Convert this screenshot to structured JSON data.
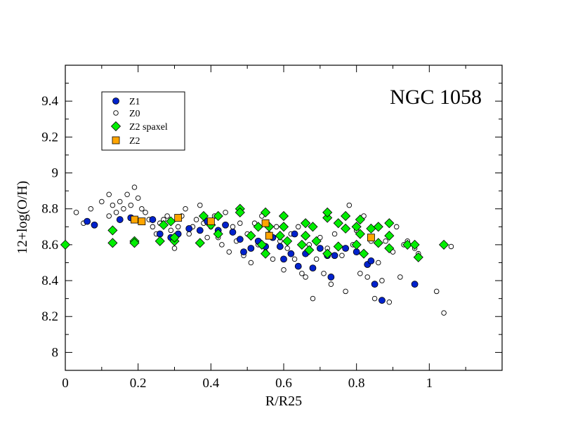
{
  "chart_data": {
    "type": "scatter",
    "title": "NGC 1058",
    "xlabel": "R/R25",
    "ylabel": "12+log(O/H)",
    "xlim": [
      0,
      1.2
    ],
    "ylim": [
      7.9,
      9.6
    ],
    "xticks": [
      0,
      0.2,
      0.4,
      0.6,
      0.8,
      1
    ],
    "xtick_labels": [
      "0",
      "0.2",
      "0.4",
      "0.6",
      "0.8",
      "1"
    ],
    "yticks": [
      8,
      8.2,
      8.4,
      8.6,
      8.8,
      9,
      9.2,
      9.4
    ],
    "ytick_labels": [
      "8",
      "8.2",
      "8.4",
      "8.6",
      "8.8",
      "9",
      "9.2",
      "9.4"
    ],
    "legend_position": "top-left",
    "colors": {
      "z1": "#0022cc",
      "z0": "#ffffff",
      "z2_spaxel": "#00ee00",
      "z2": "#ffa500"
    },
    "series": [
      {
        "name": "Z1",
        "marker": "filled-circle",
        "points": [
          [
            0.06,
            8.73
          ],
          [
            0.08,
            8.71
          ],
          [
            0.15,
            8.74
          ],
          [
            0.18,
            8.75
          ],
          [
            0.24,
            8.74
          ],
          [
            0.26,
            8.66
          ],
          [
            0.29,
            8.64
          ],
          [
            0.31,
            8.66
          ],
          [
            0.34,
            8.69
          ],
          [
            0.37,
            8.68
          ],
          [
            0.39,
            8.73
          ],
          [
            0.42,
            8.68
          ],
          [
            0.44,
            8.71
          ],
          [
            0.46,
            8.67
          ],
          [
            0.48,
            8.63
          ],
          [
            0.49,
            8.56
          ],
          [
            0.51,
            8.58
          ],
          [
            0.53,
            8.62
          ],
          [
            0.55,
            8.59
          ],
          [
            0.57,
            8.64
          ],
          [
            0.59,
            8.59
          ],
          [
            0.6,
            8.52
          ],
          [
            0.62,
            8.55
          ],
          [
            0.63,
            8.66
          ],
          [
            0.64,
            8.48
          ],
          [
            0.66,
            8.55
          ],
          [
            0.68,
            8.47
          ],
          [
            0.7,
            8.58
          ],
          [
            0.72,
            8.54
          ],
          [
            0.73,
            8.42
          ],
          [
            0.74,
            8.54
          ],
          [
            0.77,
            8.58
          ],
          [
            0.8,
            8.56
          ],
          [
            0.81,
            8.66
          ],
          [
            0.83,
            8.49
          ],
          [
            0.84,
            8.51
          ],
          [
            0.85,
            8.38
          ],
          [
            0.87,
            8.29
          ],
          [
            0.96,
            8.38
          ]
        ]
      },
      {
        "name": "Z0",
        "marker": "open-circle",
        "points": [
          [
            0.03,
            8.78
          ],
          [
            0.05,
            8.72
          ],
          [
            0.07,
            8.8
          ],
          [
            0.1,
            8.84
          ],
          [
            0.12,
            8.88
          ],
          [
            0.12,
            8.76
          ],
          [
            0.13,
            8.82
          ],
          [
            0.14,
            8.78
          ],
          [
            0.15,
            8.84
          ],
          [
            0.16,
            8.8
          ],
          [
            0.17,
            8.88
          ],
          [
            0.18,
            8.82
          ],
          [
            0.19,
            8.92
          ],
          [
            0.2,
            8.86
          ],
          [
            0.21,
            8.8
          ],
          [
            0.22,
            8.78
          ],
          [
            0.23,
            8.74
          ],
          [
            0.24,
            8.7
          ],
          [
            0.25,
            8.66
          ],
          [
            0.26,
            8.72
          ],
          [
            0.27,
            8.74
          ],
          [
            0.28,
            8.76
          ],
          [
            0.29,
            8.68
          ],
          [
            0.3,
            8.58
          ],
          [
            0.31,
            8.7
          ],
          [
            0.32,
            8.76
          ],
          [
            0.33,
            8.8
          ],
          [
            0.34,
            8.66
          ],
          [
            0.35,
            8.7
          ],
          [
            0.36,
            8.74
          ],
          [
            0.37,
            8.82
          ],
          [
            0.38,
            8.72
          ],
          [
            0.39,
            8.64
          ],
          [
            0.4,
            8.7
          ],
          [
            0.41,
            8.76
          ],
          [
            0.42,
            8.64
          ],
          [
            0.43,
            8.6
          ],
          [
            0.44,
            8.78
          ],
          [
            0.45,
            8.56
          ],
          [
            0.46,
            8.7
          ],
          [
            0.47,
            8.62
          ],
          [
            0.48,
            8.72
          ],
          [
            0.49,
            8.54
          ],
          [
            0.5,
            8.66
          ],
          [
            0.51,
            8.5
          ],
          [
            0.52,
            8.72
          ],
          [
            0.53,
            8.6
          ],
          [
            0.54,
            8.76
          ],
          [
            0.55,
            8.56
          ],
          [
            0.56,
            8.66
          ],
          [
            0.57,
            8.52
          ],
          [
            0.58,
            8.7
          ],
          [
            0.59,
            8.62
          ],
          [
            0.6,
            8.46
          ],
          [
            0.61,
            8.58
          ],
          [
            0.62,
            8.66
          ],
          [
            0.63,
            8.52
          ],
          [
            0.64,
            8.7
          ],
          [
            0.65,
            8.44
          ],
          [
            0.66,
            8.42
          ],
          [
            0.67,
            8.6
          ],
          [
            0.68,
            8.3
          ],
          [
            0.69,
            8.52
          ],
          [
            0.7,
            8.64
          ],
          [
            0.71,
            8.44
          ],
          [
            0.72,
            8.58
          ],
          [
            0.73,
            8.38
          ],
          [
            0.74,
            8.66
          ],
          [
            0.75,
            8.72
          ],
          [
            0.76,
            8.54
          ],
          [
            0.77,
            8.34
          ],
          [
            0.78,
            8.82
          ],
          [
            0.79,
            8.6
          ],
          [
            0.8,
            8.68
          ],
          [
            0.81,
            8.44
          ],
          [
            0.82,
            8.76
          ],
          [
            0.83,
            8.42
          ],
          [
            0.84,
            8.62
          ],
          [
            0.85,
            8.3
          ],
          [
            0.86,
            8.5
          ],
          [
            0.87,
            8.4
          ],
          [
            0.88,
            8.62
          ],
          [
            0.89,
            8.28
          ],
          [
            0.9,
            8.56
          ],
          [
            0.91,
            8.7
          ],
          [
            0.92,
            8.42
          ],
          [
            0.93,
            8.6
          ],
          [
            0.94,
            8.62
          ],
          [
            0.96,
            8.58
          ],
          [
            0.97,
            8.55
          ],
          [
            1.02,
            8.34
          ],
          [
            1.04,
            8.22
          ],
          [
            1.06,
            8.59
          ]
        ]
      },
      {
        "name": "Z2 spaxel",
        "marker": "diamond",
        "points": [
          [
            0.0,
            8.6
          ],
          [
            0.13,
            8.68
          ],
          [
            0.13,
            8.61
          ],
          [
            0.19,
            8.62
          ],
          [
            0.19,
            8.61
          ],
          [
            0.26,
            8.62
          ],
          [
            0.27,
            8.71
          ],
          [
            0.29,
            8.73
          ],
          [
            0.3,
            8.62
          ],
          [
            0.3,
            8.64
          ],
          [
            0.37,
            8.61
          ],
          [
            0.38,
            8.76
          ],
          [
            0.4,
            8.71
          ],
          [
            0.42,
            8.66
          ],
          [
            0.42,
            8.76
          ],
          [
            0.48,
            8.8
          ],
          [
            0.48,
            8.78
          ],
          [
            0.51,
            8.65
          ],
          [
            0.53,
            8.7
          ],
          [
            0.54,
            8.6
          ],
          [
            0.55,
            8.78
          ],
          [
            0.55,
            8.55
          ],
          [
            0.56,
            8.7
          ],
          [
            0.59,
            8.65
          ],
          [
            0.6,
            8.76
          ],
          [
            0.6,
            8.7
          ],
          [
            0.61,
            8.62
          ],
          [
            0.65,
            8.6
          ],
          [
            0.66,
            8.72
          ],
          [
            0.66,
            8.65
          ],
          [
            0.67,
            8.57
          ],
          [
            0.68,
            8.7
          ],
          [
            0.69,
            8.62
          ],
          [
            0.72,
            8.75
          ],
          [
            0.72,
            8.78
          ],
          [
            0.72,
            8.55
          ],
          [
            0.75,
            8.59
          ],
          [
            0.75,
            8.72
          ],
          [
            0.77,
            8.76
          ],
          [
            0.77,
            8.69
          ],
          [
            0.8,
            8.6
          ],
          [
            0.8,
            8.7
          ],
          [
            0.81,
            8.74
          ],
          [
            0.81,
            8.66
          ],
          [
            0.82,
            8.55
          ],
          [
            0.84,
            8.69
          ],
          [
            0.86,
            8.7
          ],
          [
            0.86,
            8.61
          ],
          [
            0.89,
            8.58
          ],
          [
            0.89,
            8.72
          ],
          [
            0.89,
            8.65
          ],
          [
            0.94,
            8.6
          ],
          [
            0.96,
            8.6
          ],
          [
            0.97,
            8.53
          ],
          [
            1.04,
            8.6
          ]
        ]
      },
      {
        "name": "Z2",
        "marker": "square",
        "points": [
          [
            0.19,
            8.74
          ],
          [
            0.21,
            8.73
          ],
          [
            0.31,
            8.75
          ],
          [
            0.4,
            8.73
          ],
          [
            0.55,
            8.72
          ],
          [
            0.56,
            8.65
          ],
          [
            0.84,
            8.64
          ]
        ]
      }
    ]
  }
}
